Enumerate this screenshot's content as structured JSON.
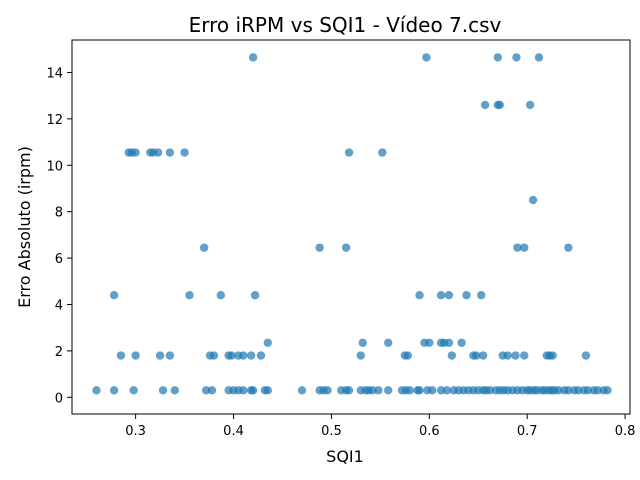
{
  "chart_data": {
    "type": "scatter",
    "title": "Erro iRPM vs SQI1 - Vídeo 7.csv",
    "xlabel": "SQI1",
    "ylabel": "Erro Absoluto (irpm)",
    "xlim": [
      0.235,
      0.805
    ],
    "ylim": [
      -0.72,
      15.4
    ],
    "xticks": [
      0.3,
      0.4,
      0.5,
      0.6,
      0.7,
      0.8
    ],
    "xtick_labels": [
      "0.3",
      "0.4",
      "0.5",
      "0.6",
      "0.7",
      "0.8"
    ],
    "yticks": [
      0,
      2,
      4,
      6,
      8,
      10,
      12,
      14
    ],
    "ytick_labels": [
      "0",
      "2",
      "4",
      "6",
      "8",
      "10",
      "12",
      "14"
    ],
    "grid": false,
    "marker_color": "#1f77b4",
    "marker_alpha": 0.7,
    "points": [
      [
        0.26,
        0.3
      ],
      [
        0.278,
        0.3
      ],
      [
        0.298,
        0.3
      ],
      [
        0.328,
        0.3
      ],
      [
        0.34,
        0.3
      ],
      [
        0.372,
        0.3
      ],
      [
        0.378,
        0.3
      ],
      [
        0.395,
        0.3
      ],
      [
        0.4,
        0.3
      ],
      [
        0.405,
        0.3
      ],
      [
        0.41,
        0.3
      ],
      [
        0.418,
        0.3
      ],
      [
        0.42,
        0.3
      ],
      [
        0.432,
        0.3
      ],
      [
        0.435,
        0.3
      ],
      [
        0.47,
        0.3
      ],
      [
        0.488,
        0.3
      ],
      [
        0.492,
        0.3
      ],
      [
        0.496,
        0.3
      ],
      [
        0.51,
        0.3
      ],
      [
        0.515,
        0.3
      ],
      [
        0.518,
        0.3
      ],
      [
        0.53,
        0.3
      ],
      [
        0.535,
        0.3
      ],
      [
        0.538,
        0.3
      ],
      [
        0.542,
        0.3
      ],
      [
        0.548,
        0.3
      ],
      [
        0.558,
        0.3
      ],
      [
        0.572,
        0.3
      ],
      [
        0.576,
        0.3
      ],
      [
        0.58,
        0.3
      ],
      [
        0.588,
        0.3
      ],
      [
        0.59,
        0.3
      ],
      [
        0.598,
        0.3
      ],
      [
        0.603,
        0.3
      ],
      [
        0.612,
        0.3
      ],
      [
        0.618,
        0.3
      ],
      [
        0.625,
        0.3
      ],
      [
        0.63,
        0.3
      ],
      [
        0.635,
        0.3
      ],
      [
        0.64,
        0.3
      ],
      [
        0.645,
        0.3
      ],
      [
        0.65,
        0.3
      ],
      [
        0.655,
        0.3
      ],
      [
        0.658,
        0.3
      ],
      [
        0.662,
        0.3
      ],
      [
        0.668,
        0.3
      ],
      [
        0.672,
        0.3
      ],
      [
        0.676,
        0.3
      ],
      [
        0.68,
        0.3
      ],
      [
        0.685,
        0.3
      ],
      [
        0.69,
        0.3
      ],
      [
        0.695,
        0.3
      ],
      [
        0.7,
        0.3
      ],
      [
        0.703,
        0.3
      ],
      [
        0.707,
        0.3
      ],
      [
        0.71,
        0.3
      ],
      [
        0.715,
        0.3
      ],
      [
        0.718,
        0.3
      ],
      [
        0.722,
        0.3
      ],
      [
        0.725,
        0.3
      ],
      [
        0.728,
        0.3
      ],
      [
        0.732,
        0.3
      ],
      [
        0.738,
        0.3
      ],
      [
        0.742,
        0.3
      ],
      [
        0.748,
        0.3
      ],
      [
        0.752,
        0.3
      ],
      [
        0.758,
        0.3
      ],
      [
        0.762,
        0.3
      ],
      [
        0.768,
        0.3
      ],
      [
        0.772,
        0.3
      ],
      [
        0.778,
        0.3
      ],
      [
        0.782,
        0.3
      ],
      [
        0.285,
        1.8
      ],
      [
        0.3,
        1.8
      ],
      [
        0.325,
        1.8
      ],
      [
        0.335,
        1.8
      ],
      [
        0.376,
        1.8
      ],
      [
        0.38,
        1.8
      ],
      [
        0.395,
        1.8
      ],
      [
        0.398,
        1.8
      ],
      [
        0.405,
        1.8
      ],
      [
        0.41,
        1.8
      ],
      [
        0.418,
        1.8
      ],
      [
        0.428,
        1.8
      ],
      [
        0.53,
        1.8
      ],
      [
        0.575,
        1.8
      ],
      [
        0.578,
        1.8
      ],
      [
        0.623,
        1.8
      ],
      [
        0.645,
        1.8
      ],
      [
        0.648,
        1.8
      ],
      [
        0.655,
        1.8
      ],
      [
        0.675,
        1.8
      ],
      [
        0.68,
        1.8
      ],
      [
        0.688,
        1.8
      ],
      [
        0.697,
        1.8
      ],
      [
        0.72,
        1.8
      ],
      [
        0.723,
        1.8
      ],
      [
        0.726,
        1.8
      ],
      [
        0.76,
        1.8
      ],
      [
        0.435,
        2.35
      ],
      [
        0.532,
        2.35
      ],
      [
        0.558,
        2.35
      ],
      [
        0.595,
        2.35
      ],
      [
        0.6,
        2.35
      ],
      [
        0.612,
        2.35
      ],
      [
        0.615,
        2.35
      ],
      [
        0.62,
        2.35
      ],
      [
        0.633,
        2.35
      ],
      [
        0.278,
        4.4
      ],
      [
        0.355,
        4.4
      ],
      [
        0.387,
        4.4
      ],
      [
        0.422,
        4.4
      ],
      [
        0.59,
        4.4
      ],
      [
        0.612,
        4.4
      ],
      [
        0.62,
        4.4
      ],
      [
        0.638,
        4.4
      ],
      [
        0.653,
        4.4
      ],
      [
        0.37,
        6.45
      ],
      [
        0.488,
        6.45
      ],
      [
        0.515,
        6.45
      ],
      [
        0.69,
        6.45
      ],
      [
        0.697,
        6.45
      ],
      [
        0.742,
        6.45
      ],
      [
        0.706,
        8.5
      ],
      [
        0.293,
        10.55
      ],
      [
        0.296,
        10.55
      ],
      [
        0.3,
        10.55
      ],
      [
        0.315,
        10.55
      ],
      [
        0.318,
        10.55
      ],
      [
        0.323,
        10.55
      ],
      [
        0.335,
        10.55
      ],
      [
        0.35,
        10.55
      ],
      [
        0.518,
        10.55
      ],
      [
        0.552,
        10.55
      ],
      [
        0.657,
        12.6
      ],
      [
        0.67,
        12.6
      ],
      [
        0.672,
        12.6
      ],
      [
        0.703,
        12.6
      ],
      [
        0.42,
        14.65
      ],
      [
        0.597,
        14.65
      ],
      [
        0.67,
        14.65
      ],
      [
        0.689,
        14.65
      ],
      [
        0.712,
        14.65
      ]
    ]
  }
}
